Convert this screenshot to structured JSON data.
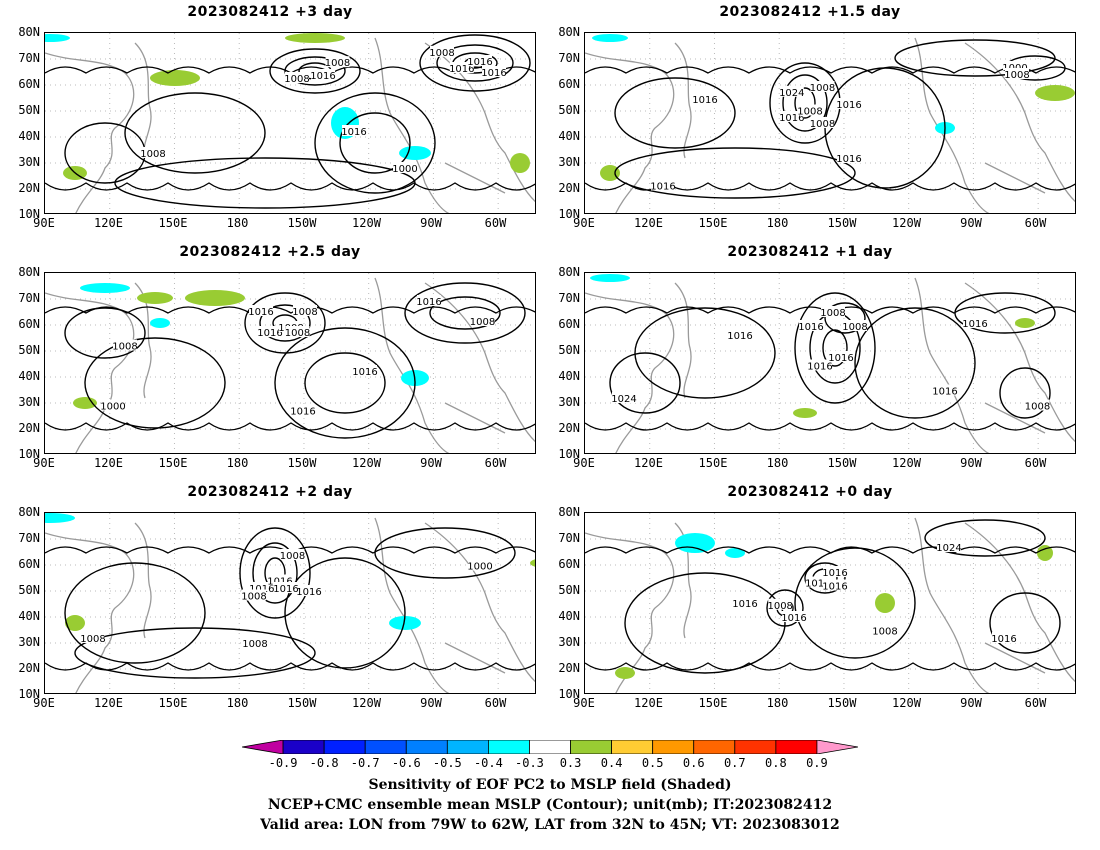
{
  "panels": [
    {
      "title": "2023082412 +3 day",
      "contour_labels": [
        "1008",
        "1008",
        "1016",
        "1008",
        "1016",
        "1016",
        "1016",
        "1008",
        "1000",
        "1016"
      ]
    },
    {
      "title": "2023082412 +1.5 day",
      "contour_labels": [
        "1008",
        "1016",
        "1016",
        "1016",
        "1000",
        "1008",
        "1016",
        "1016",
        "1008",
        "1024",
        "1008",
        "1016"
      ]
    },
    {
      "title": "2023082412 +2.5 day",
      "contour_labels": [
        "1008",
        "1016",
        "1008",
        "1016",
        "1008",
        "1016",
        "1016",
        "1000",
        "1008",
        "1016",
        "1008"
      ]
    },
    {
      "title": "2023082412 +1 day",
      "contour_labels": [
        "1008",
        "1016",
        "1016",
        "1008",
        "1016",
        "1016",
        "1016",
        "1024",
        "1008",
        "1016"
      ]
    },
    {
      "title": "2023082412 +2 day",
      "contour_labels": [
        "1008",
        "1016",
        "1016",
        "1016",
        "1000",
        "1008",
        "1008",
        "1008",
        "1016"
      ]
    },
    {
      "title": "2023082412 +0 day",
      "contour_labels": [
        "1016",
        "1016",
        "1016",
        "1008",
        "1008",
        "1024",
        "1016",
        "1016",
        "1016"
      ]
    }
  ],
  "axes": {
    "y_ticks": [
      "80N",
      "70N",
      "60N",
      "50N",
      "40N",
      "30N",
      "20N",
      "10N"
    ],
    "x_ticks": [
      "90E",
      "120E",
      "150E",
      "180",
      "150W",
      "120W",
      "90W",
      "60W"
    ]
  },
  "colorbar": {
    "labels": [
      "-0.9",
      "-0.8",
      "-0.7",
      "-0.6",
      "-0.5",
      "-0.4",
      "-0.3",
      "0.3",
      "0.4",
      "0.5",
      "0.6",
      "0.7",
      "0.8",
      "0.9"
    ],
    "colors": [
      "#c000a0",
      "#1a00c8",
      "#0020ff",
      "#0050ff",
      "#0080ff",
      "#00b4ff",
      "#00ffff",
      "#ffffff",
      "#99cc33",
      "#ffcc33",
      "#ff9900",
      "#ff6600",
      "#ff3300",
      "#ff0000",
      "#ff99cc"
    ]
  },
  "caption": {
    "line1": "Sensitivity of EOF PC2 to MSLP field (Shaded)",
    "line2": "NCEP+CMC ensemble mean MSLP (Contour); unit(mb); IT:2023082412",
    "line3": "Valid area: LON from 79W to 62W, LAT from 32N to 45N; VT: 2023083012"
  }
}
